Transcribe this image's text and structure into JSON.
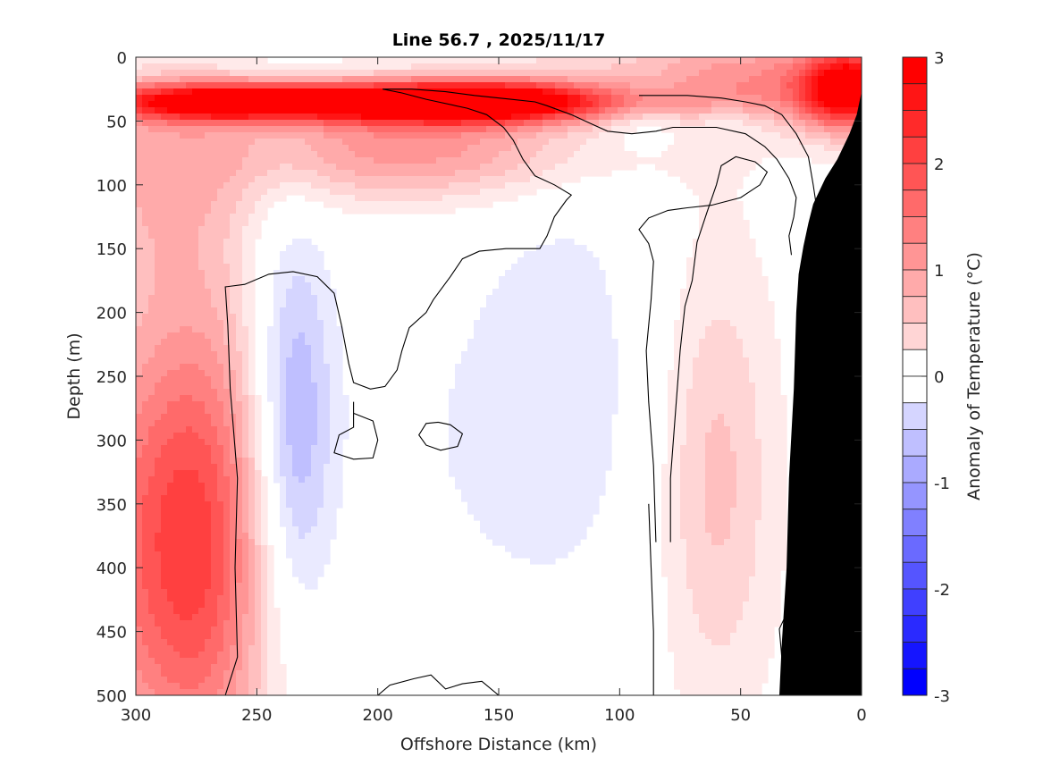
{
  "chart_data": {
    "type": "heatmap",
    "subtype": "filled-contour",
    "title": "Line 56.7 , 2025/11/17",
    "xlabel": "Offshore Distance (km)",
    "ylabel": "Depth (m)",
    "xlim": [
      300,
      0
    ],
    "ylim": [
      0,
      500
    ],
    "x_reversed": true,
    "y_reversed": true,
    "xticks": [
      300,
      250,
      200,
      150,
      100,
      50,
      0
    ],
    "xtick_labels": [
      "300",
      "250",
      "200",
      "150",
      "100",
      "50",
      "0"
    ],
    "yticks": [
      0,
      50,
      100,
      150,
      200,
      250,
      300,
      350,
      400,
      450,
      500
    ],
    "ytick_labels": [
      "0",
      "50",
      "100",
      "150",
      "200",
      "250",
      "300",
      "350",
      "400",
      "450",
      "500"
    ],
    "colorbar": {
      "label": "Anomaly of Temperature (°C)",
      "clim": [
        -3,
        3
      ],
      "level_step": 0.25,
      "ticks": [
        3,
        2,
        1,
        0,
        -1,
        -2,
        -3
      ],
      "tick_labels": [
        "3",
        "2",
        "1",
        "0",
        "-1",
        "-2",
        "-3"
      ],
      "colormap": "blue-white-red"
    },
    "zero_contour": "black line",
    "bottom_mask": "bathymetry (black)",
    "features": [
      {
        "name": "surface warm core",
        "x_range_km": [
          270,
          120
        ],
        "depth_range_m": [
          20,
          50
        ],
        "anomaly_max": 3
      },
      {
        "name": "nearshore surface warm",
        "x_range_km": [
          15,
          0
        ],
        "depth_range_m": [
          0,
          40
        ],
        "anomaly_max": 3
      },
      {
        "name": "offshore deep warm",
        "x_range_km": [
          300,
          260
        ],
        "depth_range_m": [
          200,
          500
        ],
        "anomaly_max": 2
      },
      {
        "name": "cold eddy",
        "x_range_km": [
          255,
          220
        ],
        "depth_range_m": [
          200,
          450
        ],
        "anomaly_min": -1
      },
      {
        "name": "cold tongue",
        "x_range_km": [
          210,
          100
        ],
        "depth_range_m": [
          100,
          500
        ],
        "anomaly_min": -0.5
      },
      {
        "name": "nearshore subsurface warm",
        "x_range_km": [
          75,
          40
        ],
        "depth_range_m": [
          160,
          500
        ],
        "anomaly_max": 0.75
      }
    ]
  },
  "colors": {
    "warm_max": "#ff0000",
    "cold_max": "#0000ff",
    "bathymetry": "#000000",
    "contour": "#000000"
  }
}
